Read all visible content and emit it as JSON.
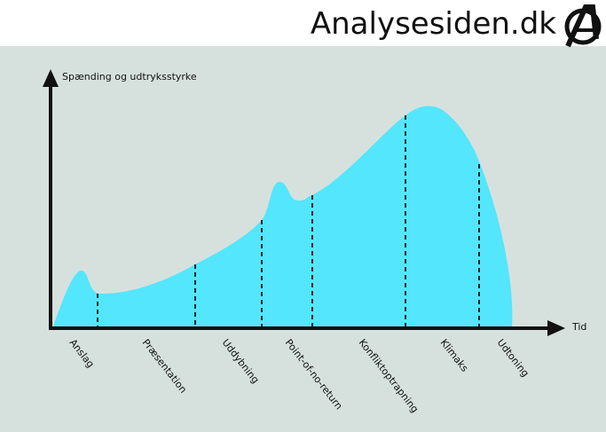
{
  "header": {
    "brand": "Analysesiden.dk"
  },
  "diagram": {
    "y_axis_label": "Spænding og udtryksstyrke",
    "x_axis_label": "Tid",
    "phases": [
      "Anslag",
      "Præsentation",
      "Uddybning",
      "Point-of-no-return",
      "Konfliktoptrapning",
      "Klimaks",
      "Udtoning"
    ]
  }
}
